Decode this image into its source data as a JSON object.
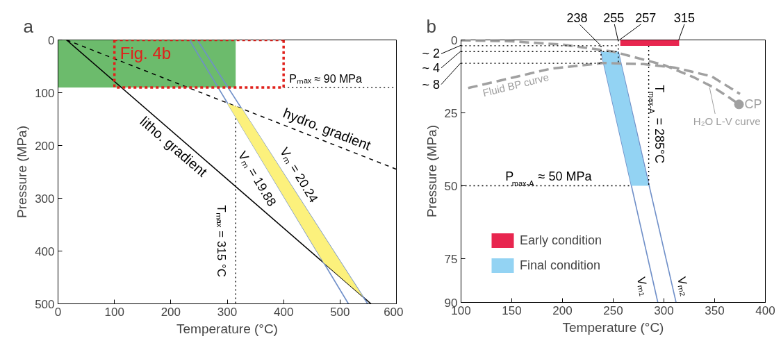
{
  "chart_data": [
    {
      "type": "line",
      "title": "a",
      "xlabel": "Temperature (°C)",
      "ylabel": "Pressure (MPa)",
      "xlim": [
        0,
        600
      ],
      "ylim": [
        500,
        0
      ],
      "xticks": [
        0,
        100,
        200,
        300,
        400,
        500,
        600
      ],
      "yticks": [
        0,
        100,
        200,
        300,
        400,
        500
      ],
      "grid": false,
      "series": [
        {
          "type": "area",
          "color": "#6cbb6c",
          "x": [
            0,
            315
          ],
          "values": [
            90,
            90
          ]
        },
        {
          "color": "#000000",
          "line_style": "solid",
          "x": [
            15,
            555
          ],
          "values": [
            0,
            500
          ]
        },
        {
          "color": "#000000",
          "line_style": "dashed",
          "x": [
            15,
            600
          ],
          "values": [
            0,
            245
          ]
        },
        {
          "color": "#6f8fc8",
          "line_style": "solid",
          "x": [
            233,
            515
          ],
          "values": [
            0,
            500
          ]
        },
        {
          "color": "#6f8fc8",
          "line_style": "solid",
          "x": [
            247,
            549
          ],
          "values": [
            0,
            500
          ]
        },
        {
          "color": "#000000",
          "line_style": "dotted",
          "x": [
            315,
            315
          ],
          "values": [
            125,
            500
          ]
        },
        {
          "color": "#000000",
          "line_style": "dotted",
          "x": [
            400,
            600
          ],
          "values": [
            90,
            90
          ]
        },
        {
          "color": "#e0201b",
          "line_style": "dotted",
          "x": [
            100,
            100,
            400,
            400
          ],
          "values": [
            0,
            90,
            90,
            0
          ]
        },
        {
          "color": "#e0201b",
          "line_style": "dotted",
          "x": [
            100,
            400
          ],
          "values": [
            0,
            0
          ]
        },
        {
          "type": "area",
          "color": "#fcf17c",
          "x": [
            300,
            326,
            541,
            471
          ],
          "values": [
            120,
            130,
            487,
            422
          ]
        }
      ],
      "annotations": [
        "Fig. 4b",
        {
          "text": "Pₘₐₓ ≈ 90 MPa",
          "x": 405,
          "y": 90
        },
        "hydro. gradient",
        "litho. gradient",
        "Vₘ = 19.88",
        "Vₘ = 20.24",
        "Tₘₐₓ = 315 °C"
      ]
    },
    {
      "type": "line",
      "title": "b",
      "xlabel": "Temperature (°C)",
      "ylabel": "Pressure (MPa)",
      "xlim": [
        100,
        400
      ],
      "ylim": [
        90,
        0
      ],
      "xticks": [
        100,
        150,
        200,
        250,
        300,
        350,
        400
      ],
      "yticks": [
        0,
        25,
        50,
        75,
        90
      ],
      "grid": false,
      "legend": "bottom left",
      "series": [
        {
          "type": "area",
          "name": "Early condition",
          "color": "#e8264f",
          "x": [
            257,
            315
          ],
          "values": [
            2,
            2
          ]
        },
        {
          "color": "#6f8fc8",
          "line_style": "solid",
          "x": [
            238,
            294
          ],
          "values": [
            4,
            90
          ]
        },
        {
          "color": "#6f8fc8",
          "line_style": "solid",
          "x": [
            255,
            312
          ],
          "values": [
            4,
            90
          ]
        },
        {
          "type": "area",
          "name": "Final condition",
          "color": "#93d3f3",
          "x": [
            238,
            255,
            285,
            268
          ],
          "values": [
            4,
            4,
            50,
            50
          ]
        },
        {
          "color": "#a0a0a0",
          "line_style": "dashed",
          "x": [
            100,
            150,
            200,
            250,
            300,
            330,
            350,
            365,
            374
          ],
          "values": [
            0.1,
            0.5,
            1.6,
            4,
            8.6,
            12.9,
            16.5,
            19.9,
            22.1
          ]
        },
        {
          "color": "#a0a0a0",
          "line_style": "dashed",
          "x": [
            107,
            151,
            188,
            240,
            280,
            311,
            347,
            375
          ],
          "values": [
            16.5,
            12.9,
            9.9,
            7.9,
            8.3,
            9.5,
            12.5,
            18.5
          ]
        },
        {
          "type": "scatter",
          "color": "#a0a0a0",
          "marker": "circle",
          "x": [
            374
          ],
          "values": [
            22.1
          ]
        },
        {
          "color": "#000000",
          "line_style": "dotted",
          "x": [
            100,
            255
          ],
          "values": [
            2,
            2
          ]
        },
        {
          "color": "#000000",
          "line_style": "dotted",
          "x": [
            100,
            255
          ],
          "values": [
            4,
            4
          ]
        },
        {
          "color": "#000000",
          "line_style": "dotted",
          "x": [
            100,
            238
          ],
          "values": [
            8,
            8
          ]
        },
        {
          "color": "#000000",
          "line_style": "dotted",
          "x": [
            238,
            238
          ],
          "values": [
            2,
            8
          ]
        },
        {
          "color": "#000000",
          "line_style": "dotted",
          "x": [
            255,
            255
          ],
          "values": [
            0,
            8
          ]
        },
        {
          "color": "#000000",
          "line_style": "dotted",
          "x": [
            285,
            285
          ],
          "values": [
            2,
            50
          ]
        },
        {
          "color": "#000000",
          "line_style": "dotted",
          "x": [
            100,
            268
          ],
          "values": [
            50,
            50
          ]
        }
      ],
      "annotations": [
        {
          "text": "238",
          "x": 238,
          "y": 2
        },
        {
          "text": "255",
          "x": 255,
          "y": 0
        },
        {
          "text": "257",
          "x": 257,
          "y": 0
        },
        {
          "text": "315",
          "x": 315,
          "y": 0
        },
        {
          "text": "~ 2",
          "x": 100,
          "y": 2
        },
        {
          "text": "~ 4",
          "x": 100,
          "y": 4
        },
        {
          "text": "~ 8",
          "x": 100,
          "y": 8
        },
        "Fluid BP curve",
        {
          "text": "H₂O L-V curve",
          "x": 345,
          "y": 16.3
        },
        {
          "text": "CP",
          "x": 374,
          "y": 22.1
        },
        {
          "text": "T$_{max-A}$ = 285°C",
          "x": 285,
          "y": 29
        },
        {
          "text": "P$_{max-A}$ ≈ 50 MPa",
          "x": 186,
          "y": 50
        },
        "Vₘ₁",
        "Vₘ₂"
      ]
    }
  ]
}
